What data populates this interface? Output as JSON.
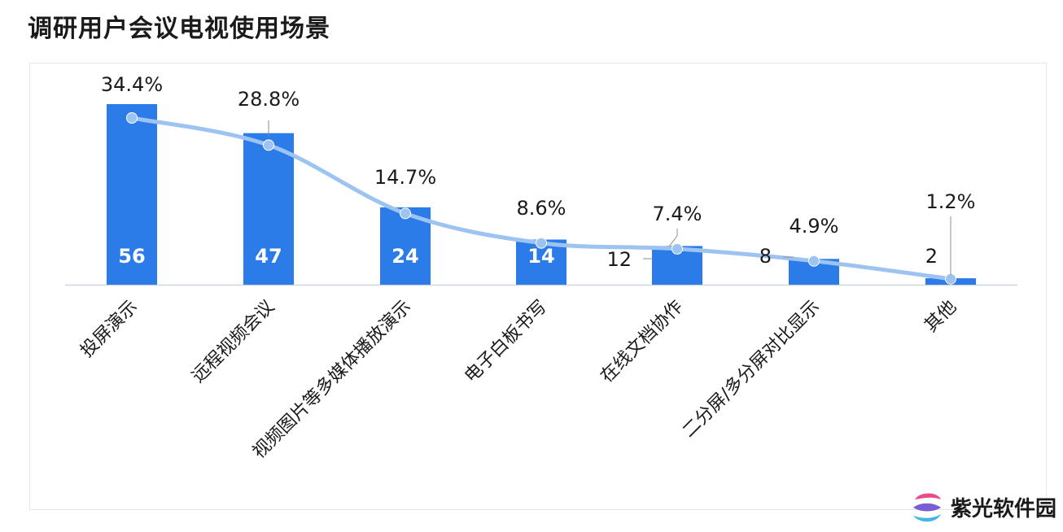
{
  "title": "调研用户会议电视使用场景",
  "watermark": {
    "text": "紫光软件园",
    "logo_colors": [
      "#e94a8c",
      "#7a5cd6",
      "#3fb7e8"
    ]
  },
  "colors": {
    "bar": "#2b7be9",
    "line": "#9cc3f2",
    "axis": "#cfd6e0",
    "label": "#1a1a1a",
    "bar_label": "#ffffff"
  },
  "chart_data": {
    "type": "bar",
    "categories": [
      "投屏演示",
      "远程视频会议",
      "视频图片等多媒体播放演示",
      "电子白板书写",
      "在线文档协作",
      "二分屏/多分屏对比显示",
      "其他"
    ],
    "values": [
      56,
      47,
      24,
      14,
      12,
      8,
      2
    ],
    "value_labels": [
      "56",
      "47",
      "24",
      "14",
      "12",
      "8",
      "2"
    ],
    "percentages": [
      34.4,
      28.8,
      14.7,
      8.6,
      7.4,
      4.9,
      1.2
    ],
    "percentage_labels": [
      "34.4%",
      "28.8%",
      "14.7%",
      "8.6%",
      "7.4%",
      "4.9%",
      "1.2%"
    ],
    "line": "smooth line through percentage points",
    "ylim": [
      0,
      60
    ],
    "grid": false,
    "legend": "none"
  }
}
